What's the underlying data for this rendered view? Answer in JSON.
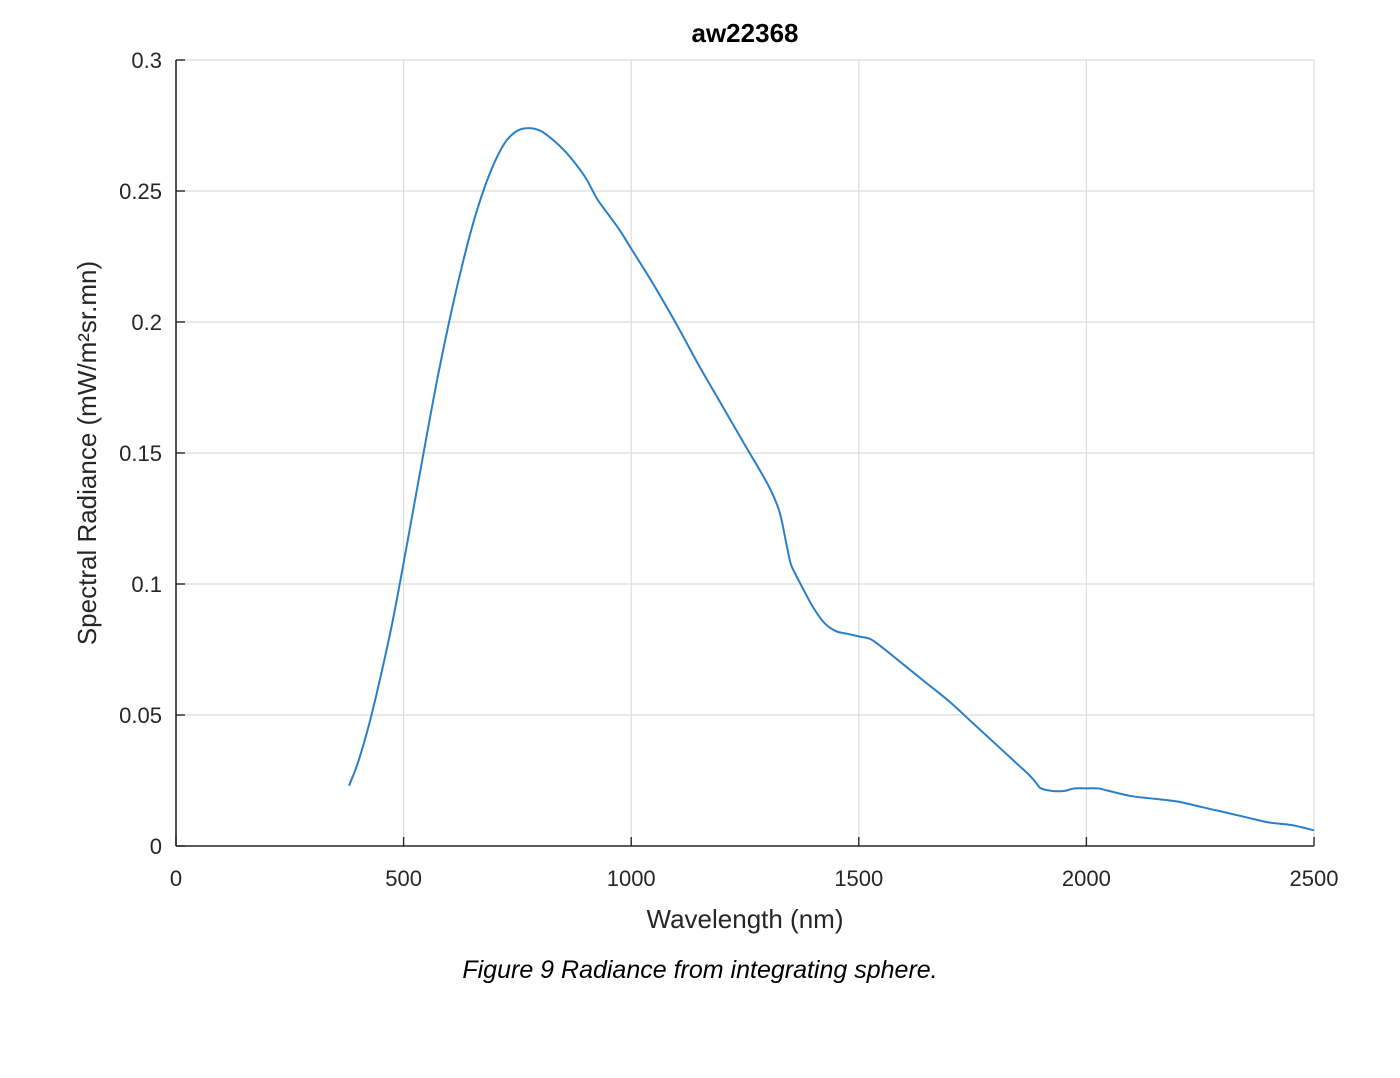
{
  "chart_data": {
    "type": "line",
    "title": "aw22368",
    "xlabel": "Wavelength (nm)",
    "ylabel": "Spectral Radiance (mW/m²sr.mn)",
    "xlim": [
      0,
      2500
    ],
    "ylim": [
      0,
      0.3
    ],
    "xticks": [
      0,
      500,
      1000,
      1500,
      2000,
      2500
    ],
    "xtick_labels": [
      "0",
      "500",
      "1000",
      "1500",
      "2000",
      "2500"
    ],
    "yticks": [
      0,
      0.05,
      0.1,
      0.15,
      0.2,
      0.25,
      0.3
    ],
    "ytick_labels": [
      "0",
      "0.05",
      "0.1",
      "0.15",
      "0.2",
      "0.25",
      "0.3"
    ],
    "grid": true,
    "series_color": "#2a7fc9",
    "series": [
      {
        "x": [
          380,
          400,
          425,
          450,
          475,
          500,
          525,
          550,
          575,
          600,
          625,
          650,
          675,
          700,
          725,
          750,
          775,
          800,
          825,
          850,
          875,
          900,
          925,
          950,
          975,
          1000,
          1050,
          1100,
          1150,
          1200,
          1250,
          1300,
          1325,
          1340,
          1350,
          1360,
          1375,
          1400,
          1425,
          1450,
          1475,
          1500,
          1525,
          1550,
          1600,
          1650,
          1700,
          1750,
          1800,
          1850,
          1875,
          1890,
          1900,
          1925,
          1950,
          1975,
          2000,
          2025,
          2050,
          2100,
          2150,
          2200,
          2250,
          2300,
          2350,
          2400,
          2450,
          2500
        ],
        "y": [
          0.023,
          0.032,
          0.047,
          0.065,
          0.085,
          0.108,
          0.132,
          0.156,
          0.179,
          0.2,
          0.219,
          0.236,
          0.25,
          0.261,
          0.269,
          0.273,
          0.274,
          0.273,
          0.27,
          0.266,
          0.261,
          0.255,
          0.247,
          0.241,
          0.235,
          0.228,
          0.214,
          0.199,
          0.183,
          0.168,
          0.153,
          0.138,
          0.128,
          0.116,
          0.108,
          0.104,
          0.099,
          0.091,
          0.085,
          0.082,
          0.081,
          0.08,
          0.079,
          0.076,
          0.069,
          0.062,
          0.055,
          0.047,
          0.039,
          0.031,
          0.027,
          0.024,
          0.022,
          0.021,
          0.021,
          0.022,
          0.022,
          0.022,
          0.021,
          0.019,
          0.018,
          0.017,
          0.015,
          0.013,
          0.011,
          0.009,
          0.008,
          0.006
        ]
      }
    ]
  },
  "caption": "Figure 9 Radiance from integrating sphere."
}
